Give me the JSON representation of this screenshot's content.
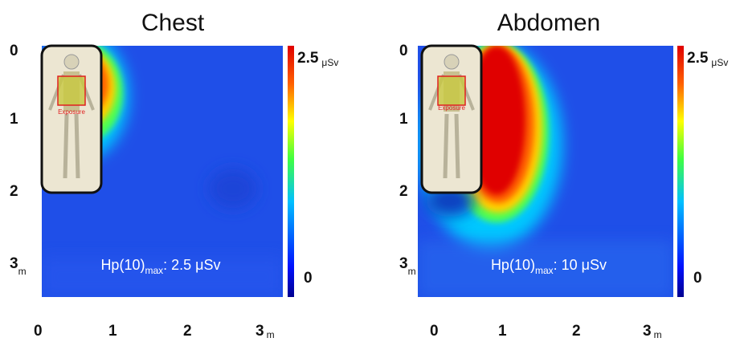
{
  "panels": [
    {
      "title": "Chest",
      "y_ticks": [
        "0",
        "1",
        "2",
        "3"
      ],
      "x_ticks": [
        "0",
        "1",
        "2",
        "3"
      ],
      "unit": "m",
      "colorbar_max": "2.5",
      "colorbar_unit": "μSv",
      "colorbar_min": "0",
      "annotation": {
        "quantity": "Hp(10)",
        "subscript": "max",
        "value": ": 2.5 μSv"
      },
      "figure_label": "Exposure"
    },
    {
      "title": "Abdomen",
      "y_ticks": [
        "0",
        "1",
        "2",
        "3"
      ],
      "x_ticks": [
        "0",
        "1",
        "2",
        "3"
      ],
      "unit": "m",
      "colorbar_max": "2.5",
      "colorbar_unit": "μSv",
      "colorbar_min": "0",
      "annotation": {
        "quantity": "Hp(10)",
        "subscript": "max",
        "value": ": 10 μSv"
      },
      "figure_label": "Exposure"
    }
  ]
}
